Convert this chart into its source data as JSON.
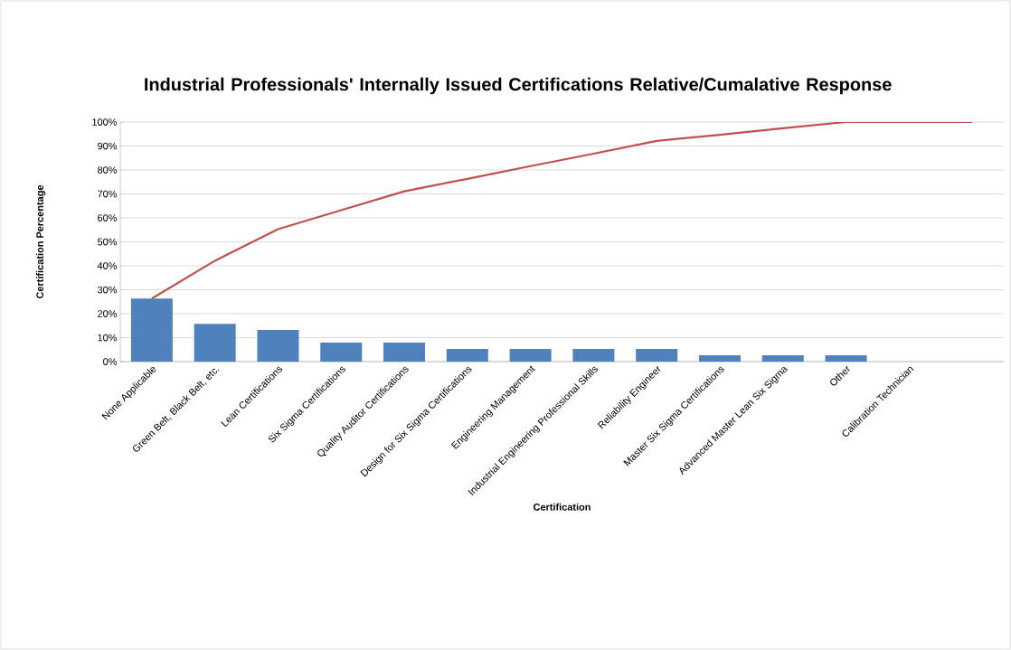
{
  "chart_data": {
    "type": "bar",
    "title": "Industrial Professionals' Internally Issued Certifications Relative/Cumalative Response",
    "xlabel": "Certification",
    "ylabel": "Certification Percentage",
    "categories": [
      "None Applicable",
      "Green Belt, Black Belt, etc.",
      "Lean Certifications",
      "Six Sigma Certifications",
      "Quality Auditor Certifications",
      "Design for Six Sigma Certifications",
      "Engineering Management",
      "Industrial Engineering Professional Skills",
      "Reliability Engineer",
      "Master Six Sigma Certifications",
      "Advanced Master Lean Six Sigma",
      "Other",
      "Calibration Technician",
      null
    ],
    "series": [
      {
        "color": "#4f81bd",
        "values": [
          26.3,
          15.8,
          13.2,
          7.9,
          7.9,
          5.3,
          5.3,
          5.3,
          5.3,
          2.6,
          2.6,
          2.6,
          0,
          0
        ]
      },
      {
        "type": "line",
        "color": "#c0504d",
        "values": [
          26.3,
          42.1,
          55.3,
          63.2,
          71.1,
          76.3,
          81.6,
          86.8,
          92.1,
          94.7,
          97.4,
          100,
          100,
          100
        ]
      }
    ],
    "ylim": [
      0,
      100
    ],
    "yticks": [
      {
        "value": 0,
        "label": "0%"
      },
      {
        "value": 10,
        "label": "10%"
      },
      {
        "value": 20,
        "label": "20%"
      },
      {
        "value": 30,
        "label": "30%"
      },
      {
        "value": 40,
        "label": "40%"
      },
      {
        "value": 50,
        "label": "50%"
      },
      {
        "value": 60,
        "label": "60%"
      },
      {
        "value": 70,
        "label": "70%"
      },
      {
        "value": 80,
        "label": "80%"
      },
      {
        "value": 90,
        "label": "90%"
      },
      {
        "value": 100,
        "label": "100%"
      }
    ],
    "grid": "y",
    "marker": "none"
  }
}
